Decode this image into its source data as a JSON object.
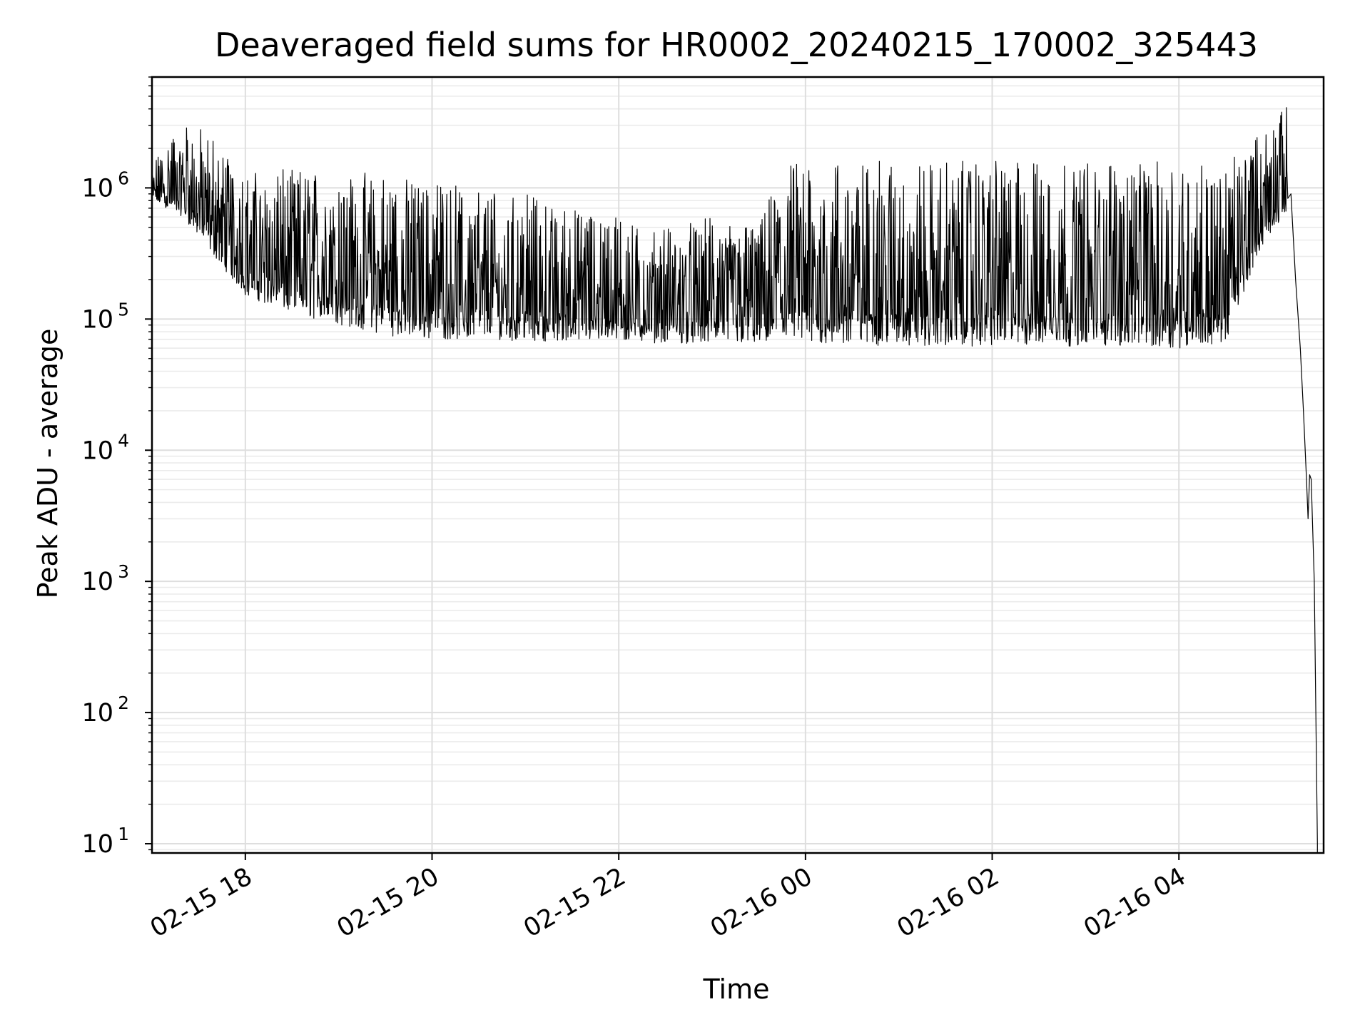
{
  "chart_data": {
    "type": "line",
    "title": "Deaveraged field sums for HR0002_20240215_170002_325443",
    "xlabel": "Time",
    "ylabel": "Peak ADU - average",
    "yscale": "log",
    "ylim": [
      8.5,
      7000000
    ],
    "xlim": [
      "2024-02-15 17:00",
      "2024-02-16 05:33"
    ],
    "grid": "both (major and minor)",
    "line_color": "#000000",
    "x_ticks": [
      {
        "t": "2024-02-15 18:00",
        "label": "02-15 18"
      },
      {
        "t": "2024-02-15 20:00",
        "label": "02-15 20"
      },
      {
        "t": "2024-02-15 22:00",
        "label": "02-15 22"
      },
      {
        "t": "2024-02-16 00:00",
        "label": "02-16 00"
      },
      {
        "t": "2024-02-16 02:00",
        "label": "02-16 02"
      },
      {
        "t": "2024-02-16 04:00",
        "label": "02-16 04"
      }
    ],
    "y_ticks": [
      {
        "v": 10,
        "base": "10",
        "exp": "1"
      },
      {
        "v": 100,
        "base": "10",
        "exp": "2"
      },
      {
        "v": 1000,
        "base": "10",
        "exp": "3"
      },
      {
        "v": 10000,
        "base": "10",
        "exp": "4"
      },
      {
        "v": 100000,
        "base": "10",
        "exp": "5"
      },
      {
        "v": 1000000,
        "base": "10",
        "exp": "6"
      }
    ],
    "series": [
      {
        "envelope": [
          {
            "t": "2024-02-15 17:00",
            "low": 800000,
            "high": 1500000
          },
          {
            "t": "2024-02-15 17:20",
            "low": 600000,
            "high": 3500000
          },
          {
            "t": "2024-02-15 17:40",
            "low": 300000,
            "high": 2500000
          },
          {
            "t": "2024-02-15 18:00",
            "low": 150000,
            "high": 1300000
          },
          {
            "t": "2024-02-15 18:30",
            "low": 110000,
            "high": 1400000
          },
          {
            "t": "2024-02-15 19:00",
            "low": 90000,
            "high": 1400000
          },
          {
            "t": "2024-02-15 19:30",
            "low": 75000,
            "high": 1300000
          },
          {
            "t": "2024-02-15 20:00",
            "low": 70000,
            "high": 1100000
          },
          {
            "t": "2024-02-15 20:30",
            "low": 70000,
            "high": 1000000
          },
          {
            "t": "2024-02-15 21:00",
            "low": 68000,
            "high": 900000
          },
          {
            "t": "2024-02-15 21:30",
            "low": 68000,
            "high": 700000
          },
          {
            "t": "2024-02-15 22:00",
            "low": 68000,
            "high": 600000
          },
          {
            "t": "2024-02-15 22:30",
            "low": 65000,
            "high": 500000
          },
          {
            "t": "2024-02-15 23:00",
            "low": 65000,
            "high": 600000
          },
          {
            "t": "2024-02-15 23:30",
            "low": 65000,
            "high": 500000
          },
          {
            "t": "2024-02-15 23:45",
            "low": 65000,
            "high": 1600000
          },
          {
            "t": "2024-02-16 00:30",
            "low": 63000,
            "high": 1600000
          },
          {
            "t": "2024-02-16 01:00",
            "low": 62000,
            "high": 1600000
          },
          {
            "t": "2024-02-16 01:30",
            "low": 62000,
            "high": 1600000
          },
          {
            "t": "2024-02-16 02:00",
            "low": 62000,
            "high": 1600000
          },
          {
            "t": "2024-02-16 02:30",
            "low": 62000,
            "high": 1600000
          },
          {
            "t": "2024-02-16 03:00",
            "low": 62000,
            "high": 1600000
          },
          {
            "t": "2024-02-16 03:30",
            "low": 62000,
            "high": 1600000
          },
          {
            "t": "2024-02-16 04:00",
            "low": 60000,
            "high": 1600000
          },
          {
            "t": "2024-02-16 04:30",
            "low": 65000,
            "high": 1500000
          },
          {
            "t": "2024-02-16 04:50",
            "low": 300000,
            "high": 2500000
          },
          {
            "t": "2024-02-16 05:10",
            "low": 700000,
            "high": 4300000
          }
        ],
        "tail": [
          {
            "t": "2024-02-16 05:12",
            "y": 900000
          },
          {
            "t": "2024-02-16 05:15",
            "y": 200000
          },
          {
            "t": "2024-02-16 05:18",
            "y": 60000
          },
          {
            "t": "2024-02-16 05:20",
            "y": 20000
          },
          {
            "t": "2024-02-16 05:22",
            "y": 6000
          },
          {
            "t": "2024-02-16 05:23",
            "y": 3000
          },
          {
            "t": "2024-02-16 05:24",
            "y": 6500
          },
          {
            "t": "2024-02-16 05:25",
            "y": 6000
          },
          {
            "t": "2024-02-16 05:27",
            "y": 1000
          },
          {
            "t": "2024-02-16 05:28",
            "y": 100
          },
          {
            "t": "2024-02-16 05:29",
            "y": 10
          }
        ]
      }
    ]
  }
}
